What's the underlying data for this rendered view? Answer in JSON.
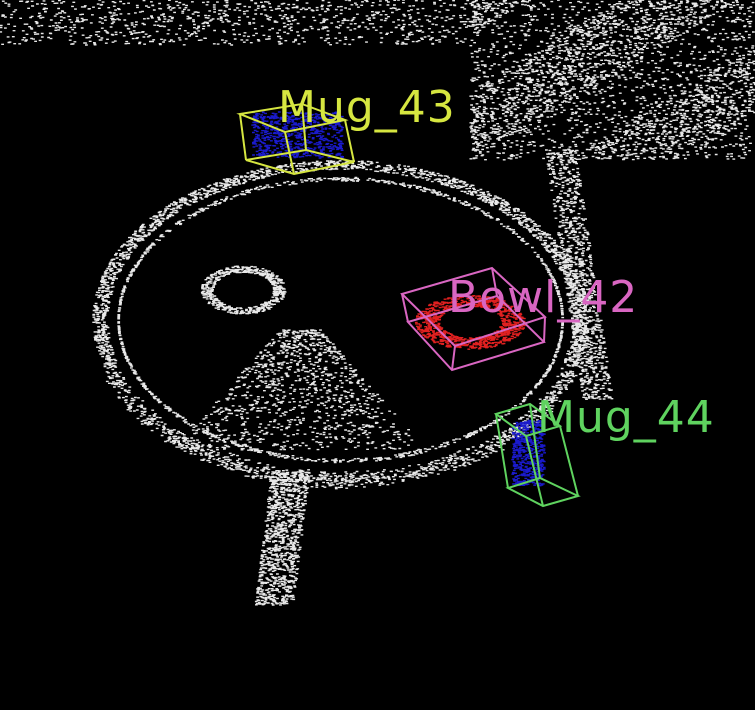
{
  "scene": {
    "background": "#000000",
    "point_color": "#e8e8e8"
  },
  "detections": [
    {
      "id": "bowl",
      "label": "Bowl_42",
      "color": "#d966c2",
      "points_color": "#e02020"
    },
    {
      "id": "mug43",
      "label": "Mug_43",
      "color": "#d6e640",
      "points_color": "#1a1acc"
    },
    {
      "id": "mug44",
      "label": "Mug_44",
      "color": "#5fd35f",
      "points_color": "#1a1acc"
    }
  ]
}
